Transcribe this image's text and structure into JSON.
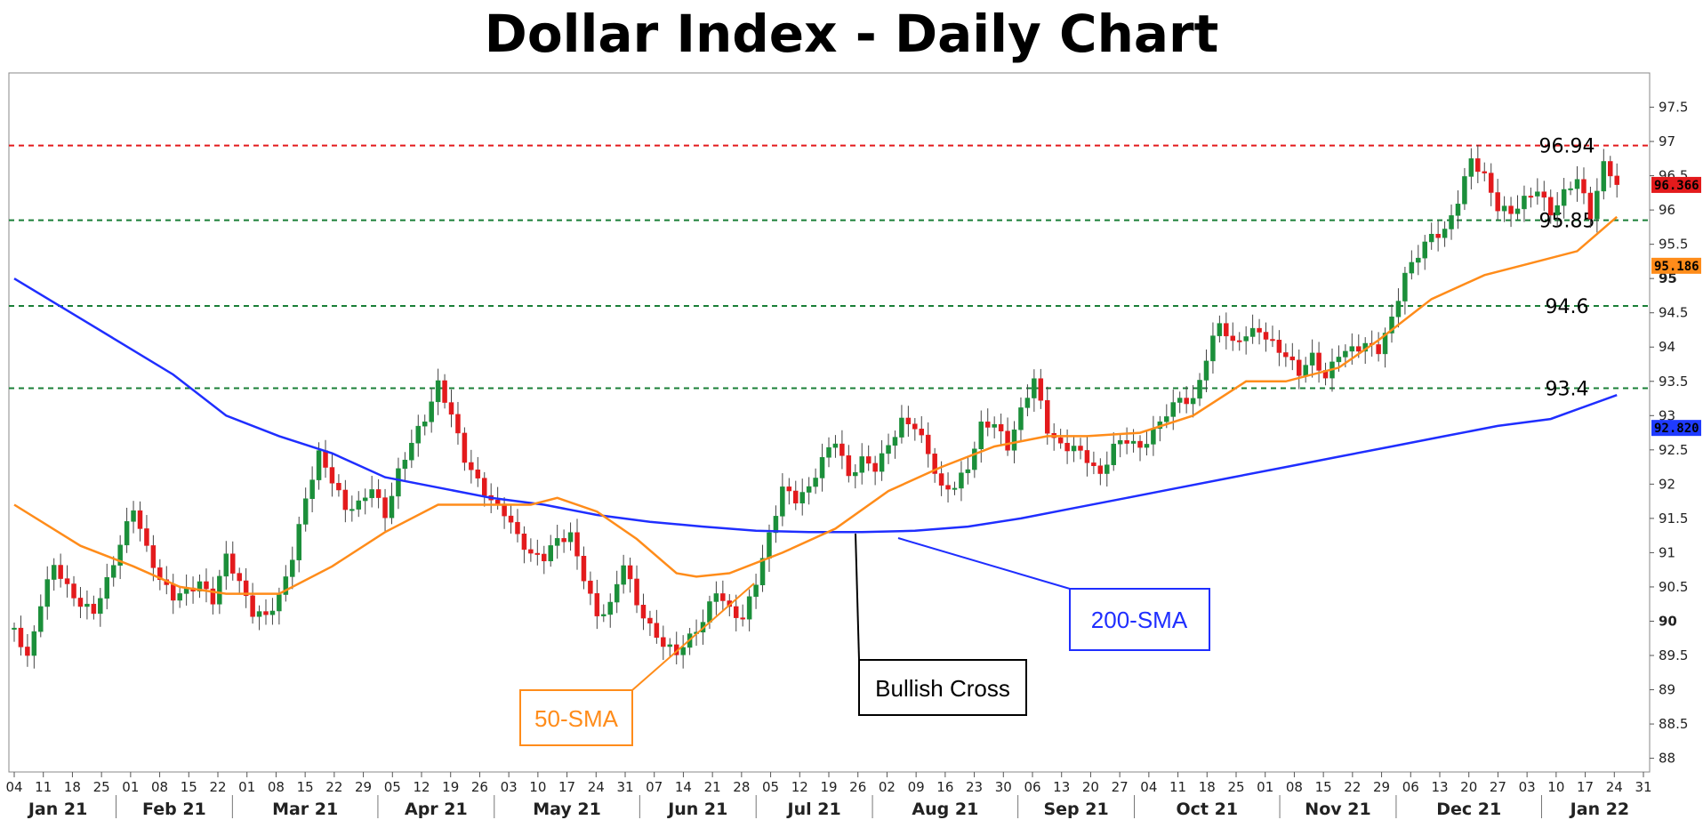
{
  "chart_data": {
    "type": "candlestick",
    "title": "Dollar Index - Daily Chart",
    "ylim": [
      87.8,
      98.0
    ],
    "y_ticks": [
      "97.5",
      "97",
      "96.5",
      "96",
      "95.5",
      "95",
      "94.5",
      "94",
      "93.5",
      "93",
      "92.5",
      "92",
      "91.5",
      "91",
      "90.5",
      "90",
      "89.5",
      "89",
      "88.5",
      "88"
    ],
    "bold_y_ticks": [
      "95",
      "90"
    ],
    "x_day_labels": [
      "04",
      "11",
      "18",
      "25",
      "01",
      "08",
      "15",
      "22",
      "01",
      "08",
      "15",
      "22",
      "29",
      "05",
      "12",
      "19",
      "26",
      "03",
      "10",
      "17",
      "24",
      "31",
      "07",
      "14",
      "21",
      "28",
      "05",
      "12",
      "19",
      "26",
      "02",
      "09",
      "16",
      "23",
      "30",
      "06",
      "13",
      "20",
      "27",
      "04",
      "11",
      "18",
      "25",
      "01",
      "08",
      "15",
      "22",
      "29",
      "06",
      "13",
      "20",
      "27",
      "03",
      "10",
      "17",
      "24",
      "31"
    ],
    "x_months": [
      "Jan 21",
      "Feb 21",
      "Mar 21",
      "Apr 21",
      "May 21",
      "Jun 21",
      "Jul 21",
      "Aug 21",
      "Sep 21",
      "Oct 21",
      "Nov 21",
      "Dec 21",
      "Jan 22"
    ],
    "levels": [
      {
        "label": "96.94",
        "value": 96.94,
        "color": "#e31a1c"
      },
      {
        "label": "95.85",
        "value": 95.85,
        "color": "#1a7f37"
      },
      {
        "label": "94.6",
        "value": 94.6,
        "color": "#1a7f37"
      },
      {
        "label": "93.4",
        "value": 93.4,
        "color": "#1a7f37"
      }
    ],
    "price_tags": [
      {
        "label": "96.366",
        "value": 96.366,
        "color": "#e31a1c"
      },
      {
        "label": "95.186",
        "value": 95.186,
        "color": "#ff8c1a"
      },
      {
        "label": "92.820",
        "value": 92.82,
        "color": "#1f3bff"
      }
    ],
    "close_path": [
      [
        0,
        89.9
      ],
      [
        2,
        89.4
      ],
      [
        4,
        90.2
      ],
      [
        6,
        90.8
      ],
      [
        8,
        90.5
      ],
      [
        10,
        90.3
      ],
      [
        12,
        90.2
      ],
      [
        14,
        90.6
      ],
      [
        16,
        91.1
      ],
      [
        18,
        91.6
      ],
      [
        20,
        91.0
      ],
      [
        22,
        90.6
      ],
      [
        24,
        90.4
      ],
      [
        26,
        90.5
      ],
      [
        28,
        90.6
      ],
      [
        30,
        90.3
      ],
      [
        32,
        90.9
      ],
      [
        34,
        90.5
      ],
      [
        36,
        90.1
      ],
      [
        38,
        90.1
      ],
      [
        40,
        90.4
      ],
      [
        42,
        91.0
      ],
      [
        44,
        91.8
      ],
      [
        46,
        92.4
      ],
      [
        48,
        92.0
      ],
      [
        50,
        91.6
      ],
      [
        52,
        91.7
      ],
      [
        54,
        92.0
      ],
      [
        56,
        91.6
      ],
      [
        58,
        92.2
      ],
      [
        60,
        92.6
      ],
      [
        62,
        92.9
      ],
      [
        64,
        93.4
      ],
      [
        66,
        93.0
      ],
      [
        68,
        92.4
      ],
      [
        70,
        92.1
      ],
      [
        72,
        91.8
      ],
      [
        74,
        91.6
      ],
      [
        76,
        91.2
      ],
      [
        78,
        90.9
      ],
      [
        80,
        90.9
      ],
      [
        82,
        91.2
      ],
      [
        84,
        91.3
      ],
      [
        86,
        90.7
      ],
      [
        88,
        90.1
      ],
      [
        90,
        90.2
      ],
      [
        92,
        90.8
      ],
      [
        94,
        90.2
      ],
      [
        96,
        89.9
      ],
      [
        98,
        89.7
      ],
      [
        100,
        89.6
      ],
      [
        102,
        89.8
      ],
      [
        104,
        90.0
      ],
      [
        106,
        90.4
      ],
      [
        108,
        90.1
      ],
      [
        110,
        90.0
      ],
      [
        112,
        90.6
      ],
      [
        114,
        91.3
      ],
      [
        116,
        92.0
      ],
      [
        118,
        91.8
      ],
      [
        120,
        91.9
      ],
      [
        122,
        92.3
      ],
      [
        124,
        92.6
      ],
      [
        126,
        92.1
      ],
      [
        128,
        92.4
      ],
      [
        130,
        92.3
      ],
      [
        132,
        92.6
      ],
      [
        134,
        92.9
      ],
      [
        136,
        92.8
      ],
      [
        138,
        92.4
      ],
      [
        140,
        91.9
      ],
      [
        142,
        92.0
      ],
      [
        144,
        92.3
      ],
      [
        146,
        92.9
      ],
      [
        148,
        92.9
      ],
      [
        150,
        92.5
      ],
      [
        152,
        93.0
      ],
      [
        154,
        93.5
      ],
      [
        156,
        92.8
      ],
      [
        158,
        92.6
      ],
      [
        160,
        92.6
      ],
      [
        162,
        92.4
      ],
      [
        164,
        92.1
      ],
      [
        166,
        92.5
      ],
      [
        168,
        92.6
      ],
      [
        170,
        92.5
      ],
      [
        172,
        92.8
      ],
      [
        174,
        93.1
      ],
      [
        176,
        93.3
      ],
      [
        178,
        93.2
      ],
      [
        180,
        93.8
      ],
      [
        182,
        94.3
      ],
      [
        184,
        94.0
      ],
      [
        186,
        94.2
      ],
      [
        188,
        94.3
      ],
      [
        190,
        94.1
      ],
      [
        192,
        93.9
      ],
      [
        194,
        93.6
      ],
      [
        196,
        93.8
      ],
      [
        198,
        93.5
      ],
      [
        200,
        93.9
      ],
      [
        202,
        94.0
      ],
      [
        204,
        94.1
      ],
      [
        206,
        94.0
      ],
      [
        208,
        94.4
      ],
      [
        210,
        95.0
      ],
      [
        212,
        95.3
      ],
      [
        214,
        95.6
      ],
      [
        216,
        95.7
      ],
      [
        218,
        96.2
      ],
      [
        220,
        96.8
      ],
      [
        222,
        96.5
      ],
      [
        224,
        96.0
      ],
      [
        226,
        95.9
      ],
      [
        228,
        96.1
      ],
      [
        230,
        96.3
      ],
      [
        232,
        96.0
      ],
      [
        234,
        96.3
      ],
      [
        236,
        96.5
      ],
      [
        238,
        95.9
      ],
      [
        240,
        96.6
      ],
      [
        242,
        96.37
      ]
    ],
    "sma50": [
      [
        0,
        91.7
      ],
      [
        10,
        91.1
      ],
      [
        18,
        90.8
      ],
      [
        25,
        90.5
      ],
      [
        32,
        90.4
      ],
      [
        40,
        90.4
      ],
      [
        48,
        90.8
      ],
      [
        56,
        91.3
      ],
      [
        64,
        91.7
      ],
      [
        72,
        91.7
      ],
      [
        78,
        91.7
      ],
      [
        82,
        91.8
      ],
      [
        88,
        91.6
      ],
      [
        94,
        91.2
      ],
      [
        100,
        90.7
      ],
      [
        103,
        90.65
      ],
      [
        108,
        90.7
      ],
      [
        116,
        91.0
      ],
      [
        124,
        91.35
      ],
      [
        132,
        91.9
      ],
      [
        140,
        92.25
      ],
      [
        148,
        92.55
      ],
      [
        156,
        92.7
      ],
      [
        162,
        92.7
      ],
      [
        170,
        92.75
      ],
      [
        178,
        93.0
      ],
      [
        186,
        93.5
      ],
      [
        192,
        93.5
      ],
      [
        200,
        93.7
      ],
      [
        206,
        94.1
      ],
      [
        214,
        94.7
      ],
      [
        222,
        95.05
      ],
      [
        228,
        95.2
      ],
      [
        236,
        95.4
      ],
      [
        242,
        95.9
      ]
    ],
    "sma200": [
      [
        0,
        95.0
      ],
      [
        12,
        94.3
      ],
      [
        24,
        93.6
      ],
      [
        32,
        93.0
      ],
      [
        40,
        92.7
      ],
      [
        48,
        92.45
      ],
      [
        56,
        92.1
      ],
      [
        64,
        91.95
      ],
      [
        72,
        91.8
      ],
      [
        80,
        91.7
      ],
      [
        88,
        91.55
      ],
      [
        96,
        91.45
      ],
      [
        104,
        91.38
      ],
      [
        112,
        91.32
      ],
      [
        120,
        91.3
      ],
      [
        128,
        91.3
      ],
      [
        136,
        91.32
      ],
      [
        144,
        91.38
      ],
      [
        152,
        91.5
      ],
      [
        160,
        91.65
      ],
      [
        168,
        91.8
      ],
      [
        176,
        91.95
      ],
      [
        184,
        92.1
      ],
      [
        192,
        92.25
      ],
      [
        200,
        92.4
      ],
      [
        208,
        92.55
      ],
      [
        216,
        92.7
      ],
      [
        224,
        92.85
      ],
      [
        232,
        92.95
      ],
      [
        242,
        93.3
      ]
    ],
    "annotations": [
      "Bullish Cross",
      "200-SMA",
      "50-SMA"
    ]
  }
}
